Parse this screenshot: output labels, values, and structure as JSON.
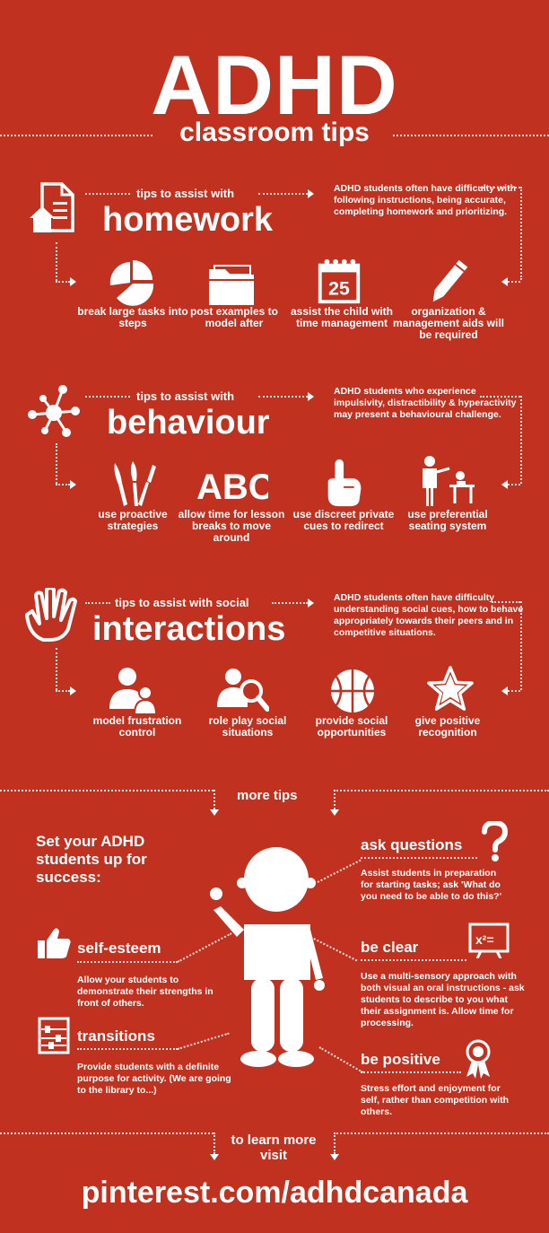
{
  "header": {
    "title": "ADHD",
    "subtitle": "classroom tips"
  },
  "homework": {
    "kicker": "tips to assist with",
    "heading": "homework",
    "description": "ADHD students often have difficulty with following instructions, being accurate, completing homework and prioritizing.",
    "calendar_day": "25",
    "tips": [
      {
        "label": "break large tasks into steps",
        "icon": "pie-chart-icon"
      },
      {
        "label": "post examples to model after",
        "icon": "folder-icon"
      },
      {
        "label": "assist the child with time management",
        "icon": "calendar-icon"
      },
      {
        "label": "organization & management aids will be required",
        "icon": "pencil-icon"
      }
    ]
  },
  "behaviour": {
    "kicker": "tips to assist with",
    "heading": "behaviour",
    "description": "ADHD students who experience impulsivity, distractibility & hyperactivity may present a behavioural challenge.",
    "abc_glyph": "ABC",
    "tips": [
      {
        "label": "use proactive strategies",
        "icon": "brushes-icon"
      },
      {
        "label": "allow time for lesson breaks to move around",
        "icon": "abc-icon"
      },
      {
        "label": "use discreet private cues to redirect",
        "icon": "pointing-hand-icon"
      },
      {
        "label": "use preferential seating system",
        "icon": "teacher-desk-icon"
      }
    ]
  },
  "social": {
    "kicker": "tips to assist with social",
    "heading": "interactions",
    "description": "ADHD students often have difficulty understanding social cues, how to behave appropriately towards their peers and in competitive situations.",
    "tips": [
      {
        "label": "model frustration control",
        "icon": "people-icon"
      },
      {
        "label": "role play social situations",
        "icon": "magnifier-person-icon"
      },
      {
        "label": "provide social opportunities",
        "icon": "basketball-icon"
      },
      {
        "label": "give positive recognition",
        "icon": "star-icon"
      }
    ]
  },
  "more": {
    "label": "more tips",
    "intro": "Set your ADHD students up for success:",
    "self_esteem": {
      "title": "self-esteem",
      "text": "Allow your students to demonstrate their strengths in front of others."
    },
    "transitions": {
      "title": "transitions",
      "text": "Provide students with a definite purpose for activity. (We are going to the library to...)"
    },
    "ask_questions": {
      "title": "ask questions",
      "text": "Assist students in preparation for starting tasks; ask 'What do you need to be able to do this?'"
    },
    "be_clear": {
      "title": "be clear",
      "text": "Use a multi-sensory approach with both visual an oral instructions - ask students to describe to you what their  assignment is. Allow time for processing.",
      "board_text": "x²="
    },
    "be_positive": {
      "title": "be positive",
      "text": "Stress effort and enjoyment for self, rather than competition with others."
    }
  },
  "footer": {
    "learn_more": "to learn more visit",
    "url": "pinterest.com/adhdcanada"
  },
  "colors": {
    "background": "#c0311f",
    "foreground": "#ffffff"
  }
}
